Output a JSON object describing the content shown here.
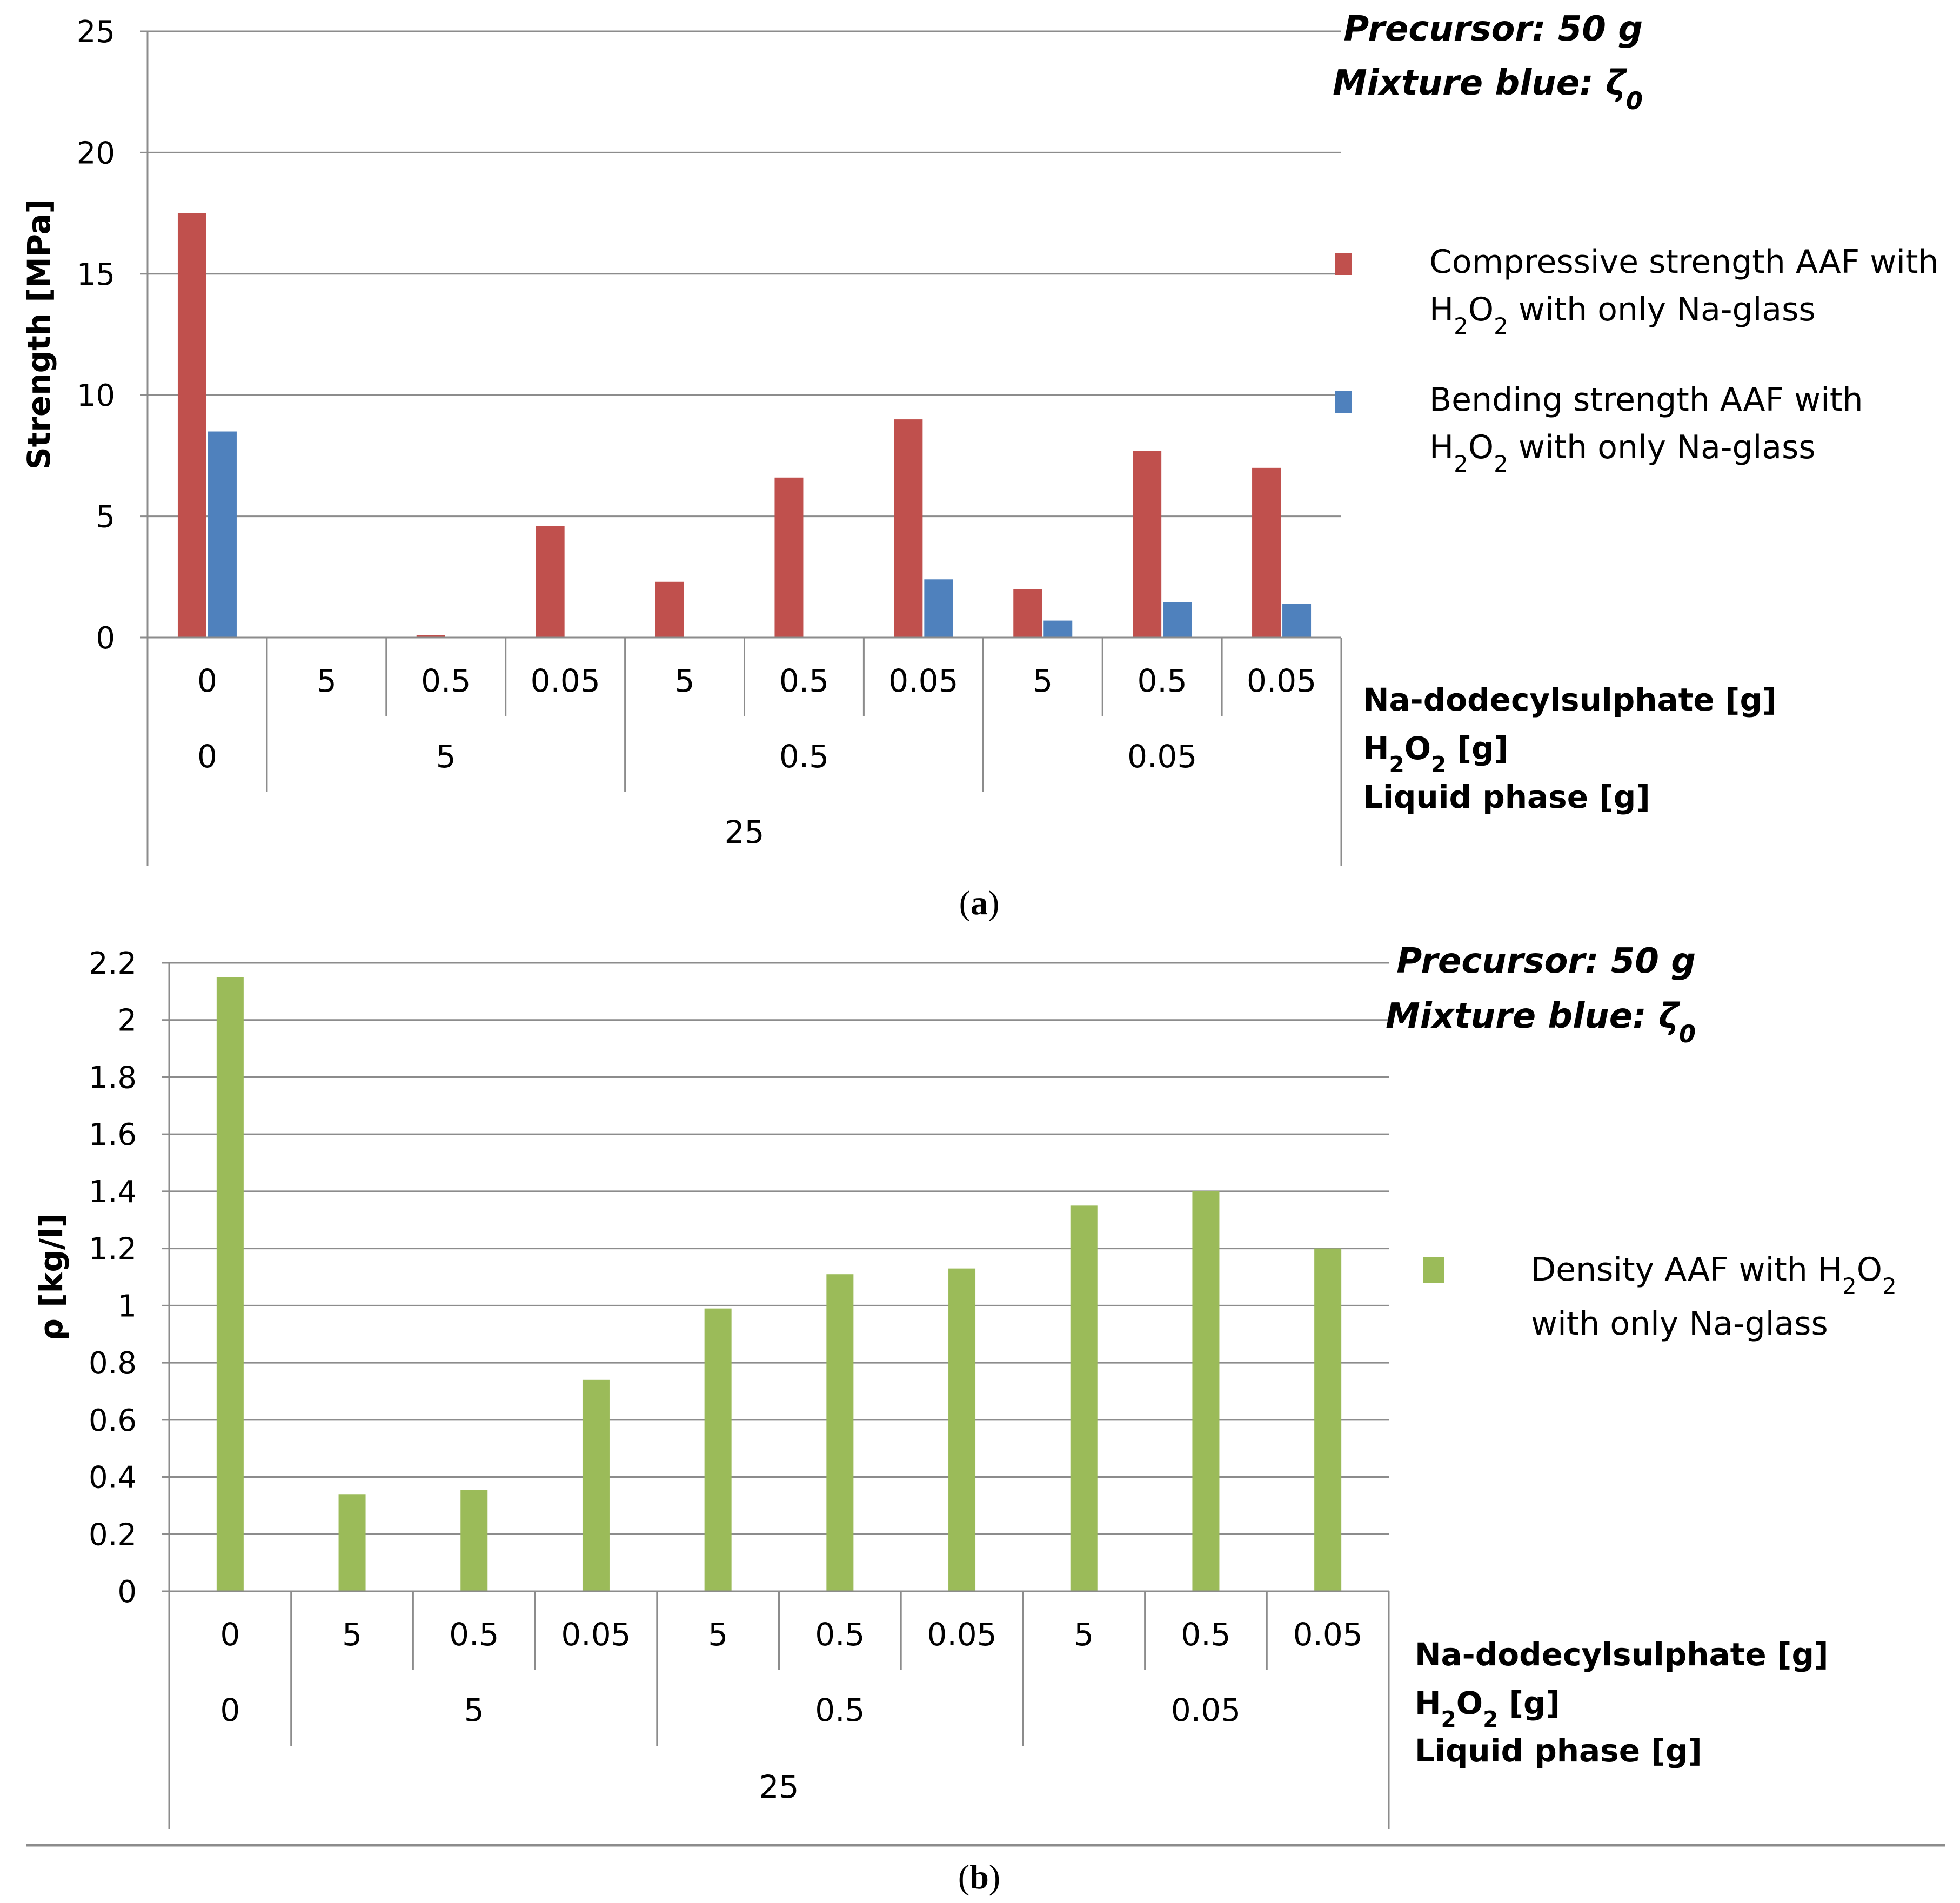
{
  "chart_data": [
    {
      "type": "bar",
      "panel_label": "(a)",
      "ylabel": "Strength [MPa]",
      "ylim": [
        0,
        25
      ],
      "yticks": [
        "0",
        "5",
        "10",
        "15",
        "20",
        "25"
      ],
      "grid": true,
      "categories": [
        "0",
        "5",
        "0.5",
        "0.05",
        "5",
        "0.5",
        "0.05",
        "5",
        "0.5",
        "0.05"
      ],
      "group_levels": [
        {
          "name": "Na-dodecylsulphate [g]",
          "labels": [
            "0",
            "5",
            "0.5",
            "0.05",
            "5",
            "0.5",
            "0.05",
            "5",
            "0.5",
            "0.05"
          ]
        },
        {
          "name": "H2O2 [g]",
          "labels": [
            "0",
            "5",
            "0.5",
            "0.05"
          ],
          "spans": [
            1,
            3,
            3,
            3
          ]
        },
        {
          "name": "Liquid phase [g]",
          "labels": [
            "25"
          ],
          "spans": [
            10
          ]
        }
      ],
      "annotation": [
        "Precursor: 50 g",
        "Mixture blue: ζ0"
      ],
      "legend_position": "right",
      "series": [
        {
          "name": "Compressive strength AAF with H2O2 with only Na-glass",
          "color": "#c0504d",
          "values": [
            17.5,
            0,
            0.1,
            4.6,
            2.3,
            6.6,
            9.0,
            2.0,
            7.7,
            7.0
          ]
        },
        {
          "name": "Bending strength AAF with H2O2 with only Na-glass",
          "color": "#4f81bd",
          "values": [
            8.5,
            0,
            0,
            0,
            0,
            0,
            2.4,
            0.7,
            1.45,
            1.4
          ]
        }
      ]
    },
    {
      "type": "bar",
      "panel_label": "(b)",
      "ylabel": "ρ [kg/l]",
      "ylim": [
        0,
        2.2
      ],
      "yticks": [
        "0",
        "0.2",
        "0.4",
        "0.6",
        "0.8",
        "1",
        "1.2",
        "1.4",
        "1.6",
        "1.8",
        "2",
        "2.2"
      ],
      "grid": true,
      "categories": [
        "0",
        "5",
        "0.5",
        "0.05",
        "5",
        "0.5",
        "0.05",
        "5",
        "0.5",
        "0.05"
      ],
      "group_levels": [
        {
          "name": "Na-dodecylsulphate [g]",
          "labels": [
            "0",
            "5",
            "0.5",
            "0.05",
            "5",
            "0.5",
            "0.05",
            "5",
            "0.5",
            "0.05"
          ]
        },
        {
          "name": "H2O2 [g]",
          "labels": [
            "0",
            "5",
            "0.5",
            "0.05"
          ],
          "spans": [
            1,
            3,
            3,
            3
          ]
        },
        {
          "name": "Liquid phase [g]",
          "labels": [
            "25"
          ],
          "spans": [
            10
          ]
        }
      ],
      "annotation": [
        "Precursor: 50 g",
        "Mixture blue: ζ0"
      ],
      "legend_position": "right",
      "series": [
        {
          "name": "Density AAF with H2O2 with only Na-glass",
          "color": "#9bbb59",
          "values": [
            2.15,
            0.34,
            0.355,
            0.74,
            0.99,
            1.11,
            1.13,
            1.35,
            1.4,
            1.2
          ]
        }
      ]
    }
  ]
}
